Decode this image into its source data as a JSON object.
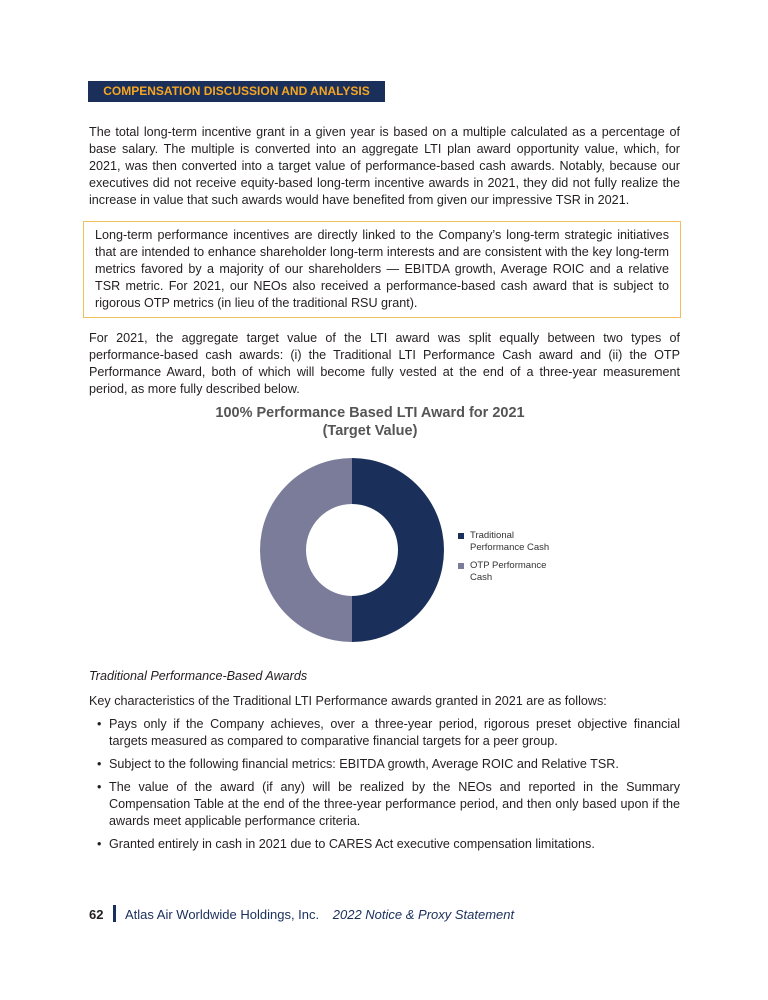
{
  "header": {
    "section": "COMPENSATION DISCUSSION AND ANALYSIS"
  },
  "body": {
    "intro": "The total long-term incentive grant in a given year is based on a multiple calculated as a percentage of base salary. The multiple is converted into an aggregate LTI plan award opportunity value, which, for 2021, was then converted into a target value of performance-based cash awards. Notably, because our executives did not receive equity-based long-term incentive awards in 2021, they did not fully realize the increase in value that such awards would have benefited from given our impressive TSR in 2021.",
    "callout": "Long-term performance incentives are directly linked to the Company’s long-term strategic initiatives that are intended to enhance shareholder long-term interests and are consistent with the key long-term metrics favored by a majority of our shareholders — EBITDA growth, Average ROIC and a relative TSR metric. For 2021, our NEOs also received a performance-based cash award that is subject to rigorous OTP metrics (in lieu of the traditional RSU grant).",
    "split": "For 2021, the aggregate target value of the LTI award was split equally between two types of performance-based cash awards: (i) the Traditional LTI Performance Cash award and (ii) the OTP Performance Award, both of which will become fully vested at the end of a three-year measurement period, as more fully described below.",
    "subheading": "Traditional Performance-Based Awards",
    "lead": "Key characteristics of the Traditional LTI Performance awards granted in 2021 are as follows:",
    "bullets": [
      "Pays only if the Company achieves, over a three-year period, rigorous preset objective financial targets measured as compared to comparative financial targets for a peer group.",
      "Subject to the following financial metrics: EBITDA growth, Average ROIC and Relative TSR.",
      "The value of the award (if any) will be realized by the NEOs and reported in the Summary Compensation Table at the end of the three-year performance period, and then only based upon if the awards meet applicable performance criteria.",
      "Granted entirely in cash in 2021 due to CARES Act executive compensation limitations."
    ]
  },
  "chart_data": {
    "type": "donut",
    "title": "100% Performance Based LTI Award for 2021",
    "subtitle": "(Target Value)",
    "categories": [
      "Traditional Performance Cash",
      "OTP Performance Cash"
    ],
    "values": [
      50,
      50
    ],
    "colors": [
      "#1b2f5b",
      "#7b7c9a"
    ],
    "legend": "right"
  },
  "footer": {
    "page": "62",
    "company": "Atlas Air Worldwide Holdings, Inc.",
    "document": "2022 Notice & Proxy Statement"
  }
}
